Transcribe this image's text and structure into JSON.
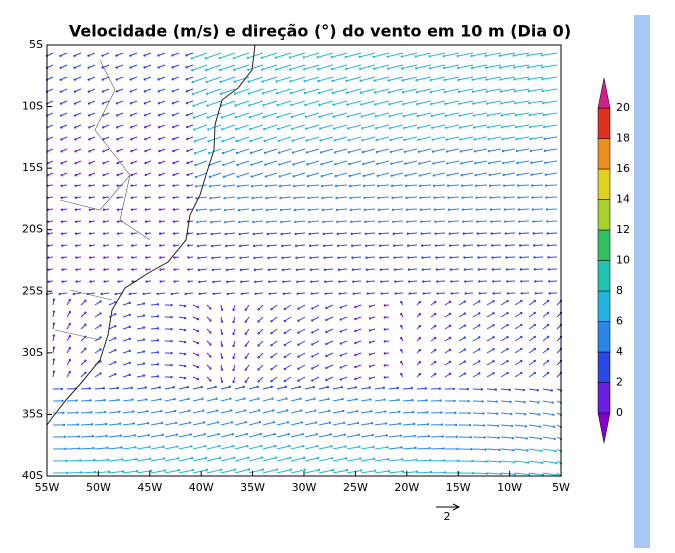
{
  "map": {
    "title": "Velocidade (m/s) e direção (°) do vento em 10 m (Dia 0)",
    "lat_labels": [
      "5S",
      "10S",
      "15S",
      "20S",
      "25S",
      "30S",
      "35S",
      "40S"
    ],
    "lon_labels": [
      "55W",
      "50W",
      "45W",
      "40W",
      "35W",
      "30W",
      "25W",
      "20W",
      "15W",
      "10W",
      "5W"
    ],
    "colorbar": {
      "labels": [
        "0",
        "2",
        "4",
        "6",
        "8",
        "10",
        "12",
        "14",
        "16",
        "18",
        "20"
      ],
      "colors": [
        "#8a00c8",
        "#6a1ee0",
        "#2a48e6",
        "#2a86ea",
        "#22b4dc",
        "#20c4b0",
        "#30c060",
        "#a6d030",
        "#e2d020",
        "#e89020",
        "#e03020",
        "#d0208a"
      ]
    },
    "reference_vector_label": "2"
  }
}
